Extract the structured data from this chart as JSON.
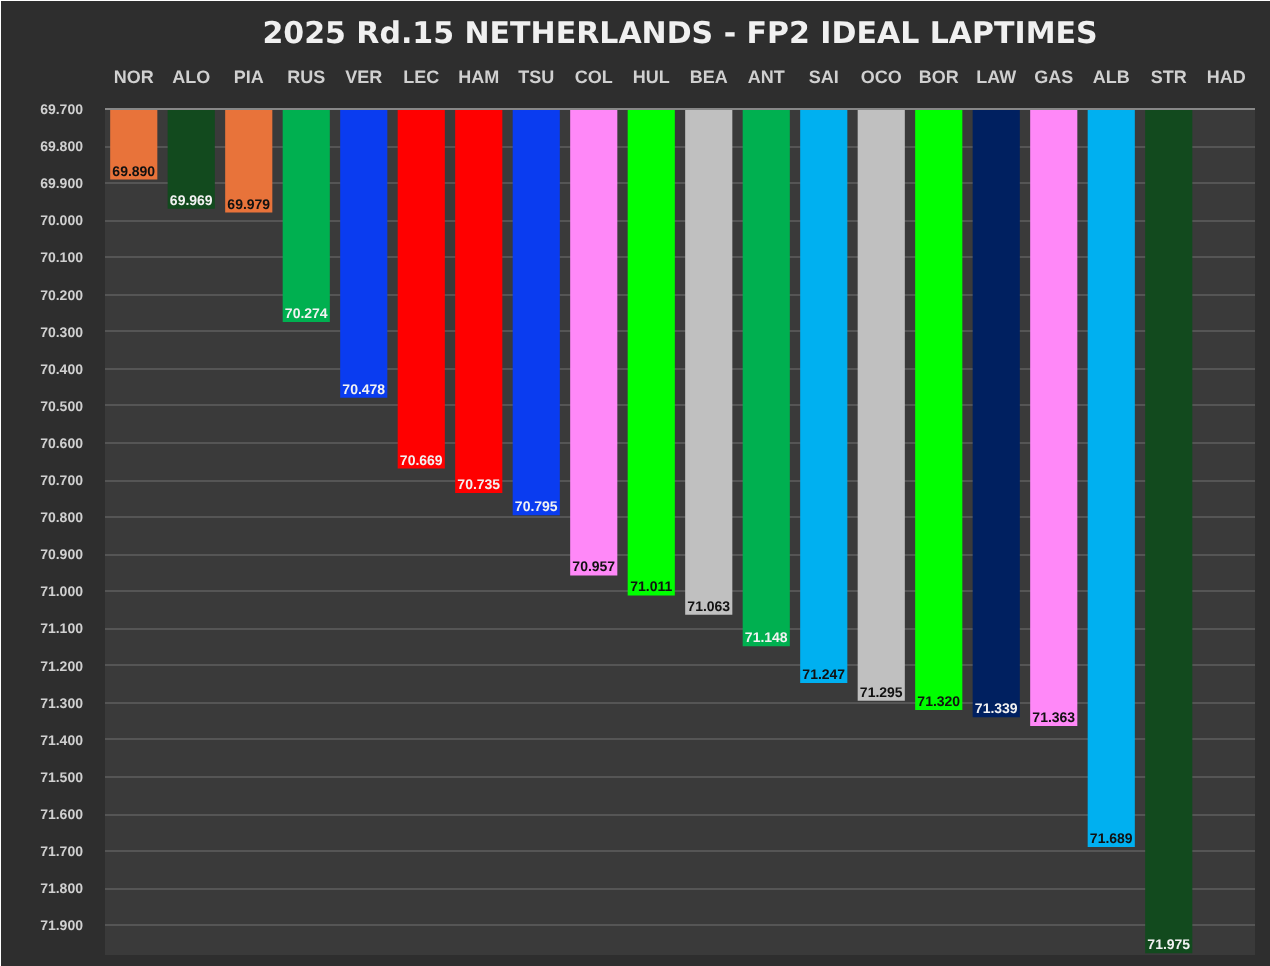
{
  "chart_data": {
    "type": "bar",
    "title": "2025 Rd.15 NETHERLANDS - FP2 IDEAL LAPTIMES",
    "categories": [
      "NOR",
      "ALO",
      "PIA",
      "RUS",
      "VER",
      "LEC",
      "HAM",
      "TSU",
      "COL",
      "HUL",
      "BEA",
      "ANT",
      "SAI",
      "OCO",
      "BOR",
      "LAW",
      "GAS",
      "ALB",
      "STR",
      "HAD"
    ],
    "values": [
      69.89,
      69.969,
      69.979,
      70.274,
      70.478,
      70.669,
      70.735,
      70.795,
      70.957,
      71.011,
      71.063,
      71.148,
      71.247,
      71.295,
      71.32,
      71.339,
      71.363,
      71.689,
      71.975,
      null
    ],
    "value_labels": [
      "69.890",
      "69.969",
      "69.979",
      "70.274",
      "70.478",
      "70.669",
      "70.735",
      "70.795",
      "70.957",
      "71.011",
      "71.063",
      "71.148",
      "71.247",
      "71.295",
      "71.320",
      "71.339",
      "71.363",
      "71.689",
      "71.975",
      null
    ],
    "colors": [
      "#e8733a",
      "#124a1e",
      "#e8733a",
      "#00b050",
      "#0a3cf0",
      "#ff0000",
      "#ff0000",
      "#0a3cf0",
      "#ff88f8",
      "#00ff00",
      "#c0c0c0",
      "#00b050",
      "#00b0f0",
      "#c0c0c0",
      "#00ff00",
      "#002060",
      "#ff88f8",
      "#00b0f0",
      "#124a1e",
      null
    ],
    "ylim": [
      71.98,
      69.7
    ],
    "yticks": [
      {
        "value": 69.7,
        "label": "69.700"
      },
      {
        "value": 69.8,
        "label": "69.800"
      },
      {
        "value": 69.9,
        "label": "69.900"
      },
      {
        "value": 70.0,
        "label": "70.000"
      },
      {
        "value": 70.1,
        "label": "70.100"
      },
      {
        "value": 70.2,
        "label": "70.200"
      },
      {
        "value": 70.3,
        "label": "70.300"
      },
      {
        "value": 70.4,
        "label": "70.400"
      },
      {
        "value": 70.5,
        "label": "70.500"
      },
      {
        "value": 70.6,
        "label": "70.600"
      },
      {
        "value": 70.7,
        "label": "70.700"
      },
      {
        "value": 70.8,
        "label": "70.800"
      },
      {
        "value": 70.9,
        "label": "70.900"
      },
      {
        "value": 71.0,
        "label": "71.000"
      },
      {
        "value": 71.1,
        "label": "71.100"
      },
      {
        "value": 71.2,
        "label": "71.200"
      },
      {
        "value": 71.3,
        "label": "71.300"
      },
      {
        "value": 71.4,
        "label": "71.400"
      },
      {
        "value": 71.5,
        "label": "71.500"
      },
      {
        "value": 71.6,
        "label": "71.600"
      },
      {
        "value": 71.7,
        "label": "71.700"
      },
      {
        "value": 71.8,
        "label": "71.800"
      },
      {
        "value": 71.9,
        "label": "71.900"
      }
    ],
    "grid": "y"
  }
}
